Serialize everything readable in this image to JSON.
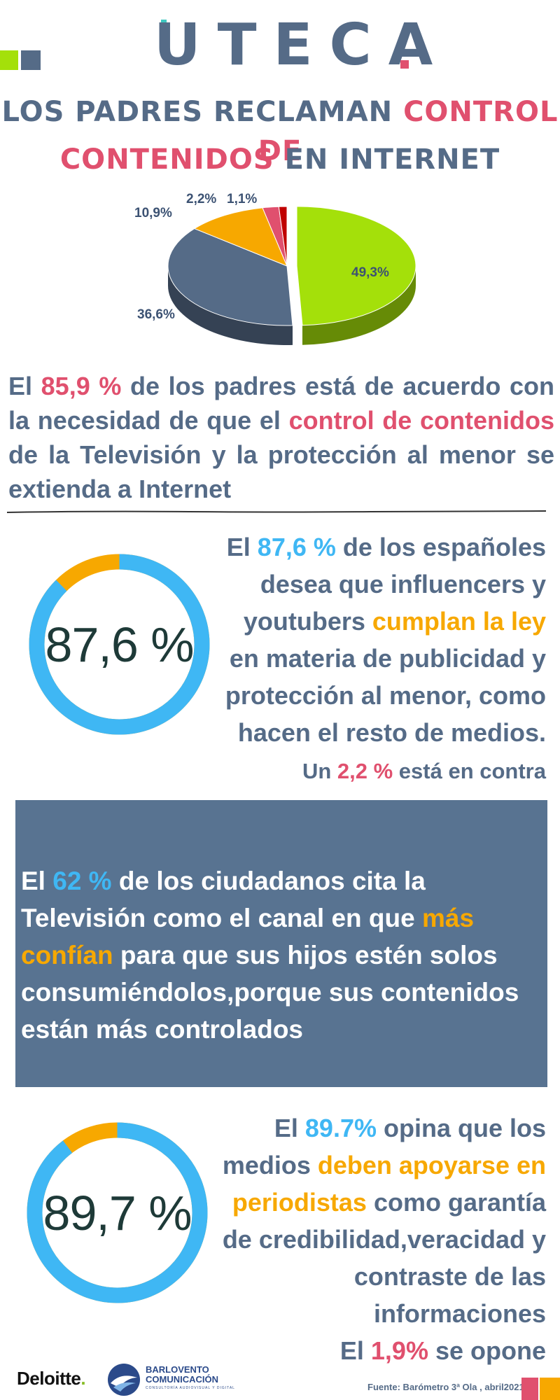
{
  "brand": {
    "logo_text": "UTECA",
    "colors": {
      "navy": "#556b87",
      "pink": "#e0506e",
      "green": "#a4e00a",
      "orange": "#f7a800",
      "blue": "#3fb7f4",
      "box": "#587391"
    }
  },
  "title": {
    "line1_a": "LOS PADRES RECLAMAN ",
    "line1_b": "CONTROL DE",
    "line2_a": "CONTENIDOS",
    "line2_b": " EN INTERNET"
  },
  "chart_data": {
    "type": "pie",
    "values": [
      49.3,
      36.6,
      10.9,
      2.2,
      1.1
    ],
    "labels": [
      "49,3%",
      "36,6%",
      "10,9%",
      "2,2%",
      "1,1%"
    ],
    "colors": [
      "#a4e00a",
      "#556b87",
      "#f7a800",
      "#e0506e",
      "#c00000"
    ]
  },
  "stat1": {
    "p1": "El ",
    "highlight1": "85,9 %",
    "p2": " de los padres está de acuerdo con la necesidad de que el ",
    "highlight2": "control de contenidos",
    "p3": " de la Televisión y la protección al menor se extienda a Internet"
  },
  "ring1": {
    "label": "87,6 %",
    "value": 87.6
  },
  "stat2": {
    "p1": "El ",
    "highlight1": "87,6 %",
    "p2": " de los españoles desea que influencers y youtubers ",
    "highlight2": "cumplan la ley",
    "p3": " en materia de publicidad y protección al menor, como hacen el resto de medios.",
    "against_a": "Un ",
    "against_b": "2,2 %",
    "against_c": " está en contra"
  },
  "stat3": {
    "p1": "El ",
    "highlight1": "62 %",
    "p2": " de los ciudadanos cita la Televisión como el canal en que ",
    "highlight2": "más confían",
    "p3": " para que sus hijos estén solos consumiéndolos,porque sus contenidos están más controlados"
  },
  "ring2": {
    "label": "89,7 %",
    "value": 89.7
  },
  "stat4": {
    "p1": "El ",
    "highlight1": "89.7%",
    "p2": " opina que los medios ",
    "highlight2": "deben apoyarse en periodistas",
    "p3": " como garantía de credibilidad,veracidad y contraste de las informaciones",
    "oppose_a": "El ",
    "oppose_b": "1,9%",
    "oppose_c": " se opone"
  },
  "footer": {
    "deloitte": "Deloitte",
    "deloitte_dot": ".",
    "bv_line1": "BARLOVENTO",
    "bv_line2": "COMUNICACIÓN",
    "bv_tag": "CONSULTORÍA AUDIOVISUAL Y DIGITAL",
    "source": "Fuente: Barómetro 3ª Ola , abril2021"
  }
}
